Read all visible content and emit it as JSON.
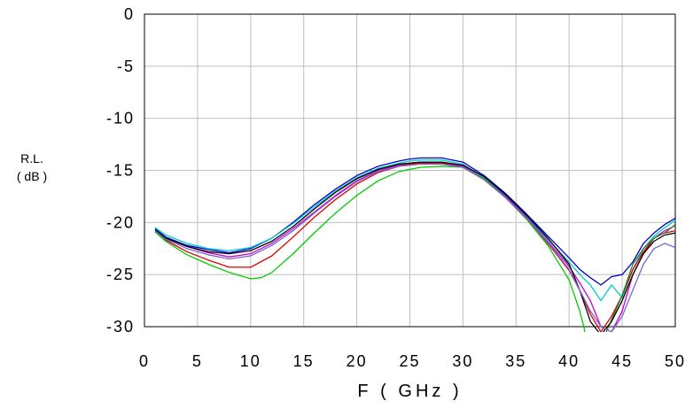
{
  "chart_data": {
    "type": "line",
    "title": "",
    "xlabel": "F ( GHz )",
    "ylabel_line1": "R.L.",
    "ylabel_line2": "( dB )",
    "xlim": [
      0,
      50
    ],
    "ylim": [
      -30,
      0
    ],
    "x_ticks": [
      0,
      5,
      10,
      15,
      20,
      25,
      30,
      35,
      40,
      45,
      50
    ],
    "y_ticks": [
      0,
      -5,
      -10,
      -15,
      -20,
      -25,
      -30
    ],
    "x_tick_labels": [
      "0",
      "5",
      "10",
      "15",
      "20",
      "25",
      "30",
      "35",
      "40",
      "45",
      "50"
    ],
    "y_tick_labels": [
      "0",
      "-5",
      "-10",
      "-15",
      "-20",
      "-25",
      "-30"
    ],
    "grid": true,
    "legend": "none",
    "series": [
      {
        "color": "#0000cc",
        "x": [
          1,
          2,
          4,
          6,
          8,
          10,
          12,
          14,
          16,
          18,
          20,
          22,
          24,
          25,
          26,
          28,
          30,
          32,
          34,
          36,
          38,
          40,
          41,
          42,
          43,
          44,
          45,
          46,
          47,
          48,
          49,
          50
        ],
        "y": [
          -20.6,
          -21.4,
          -22.2,
          -22.6,
          -22.9,
          -22.5,
          -21.5,
          -20.0,
          -18.3,
          -16.8,
          -15.5,
          -14.6,
          -14.1,
          -13.9,
          -13.8,
          -13.8,
          -14.2,
          -15.5,
          -17.2,
          -19.2,
          -21.3,
          -23.4,
          -24.5,
          -25.3,
          -26.0,
          -25.2,
          -25.0,
          -23.8,
          -22.0,
          -21.0,
          -20.2,
          -19.6
        ]
      },
      {
        "color": "#00cccc",
        "x": [
          1,
          2,
          4,
          6,
          8,
          10,
          12,
          14,
          16,
          18,
          20,
          22,
          24,
          25,
          26,
          28,
          30,
          32,
          34,
          36,
          38,
          40,
          41,
          42,
          43,
          44,
          45,
          46,
          47,
          48,
          49,
          50
        ],
        "y": [
          -20.5,
          -21.2,
          -22.0,
          -22.5,
          -22.7,
          -22.4,
          -21.5,
          -20.1,
          -18.5,
          -17.0,
          -15.7,
          -14.8,
          -14.3,
          -14.1,
          -14.0,
          -14.0,
          -14.4,
          -15.7,
          -17.4,
          -19.4,
          -21.6,
          -23.8,
          -25.0,
          -26.0,
          -27.5,
          -26.0,
          -27.2,
          -24.5,
          -22.5,
          -21.3,
          -20.5,
          -19.8
        ]
      },
      {
        "color": "#cc00cc",
        "x": [
          1,
          2,
          4,
          6,
          8,
          10,
          12,
          14,
          16,
          18,
          20,
          22,
          24,
          25,
          26,
          28,
          30,
          32,
          34,
          36,
          38,
          40,
          41,
          42,
          43,
          44,
          45,
          46,
          47,
          48,
          49,
          50
        ],
        "y": [
          -20.8,
          -21.5,
          -22.3,
          -22.9,
          -23.3,
          -23.0,
          -22.0,
          -20.6,
          -19.0,
          -17.4,
          -16.0,
          -15.0,
          -14.5,
          -14.3,
          -14.2,
          -14.2,
          -14.6,
          -15.8,
          -17.5,
          -19.5,
          -21.8,
          -24.2,
          -25.8,
          -27.5,
          -30.0,
          -30.5,
          -28.5,
          -25.0,
          -23.0,
          -21.5,
          -20.8,
          -20.3
        ]
      },
      {
        "color": "#dd0000",
        "x": [
          1,
          2,
          4,
          6,
          8,
          10,
          12,
          14,
          16,
          18,
          20,
          22,
          24,
          25,
          26,
          28,
          30,
          32,
          34,
          36,
          38,
          40,
          41,
          42,
          43,
          44,
          45,
          46,
          47,
          48,
          49,
          50
        ],
        "y": [
          -20.9,
          -21.7,
          -22.8,
          -23.6,
          -24.3,
          -24.3,
          -23.2,
          -21.4,
          -19.5,
          -17.8,
          -16.3,
          -15.2,
          -14.6,
          -14.4,
          -14.3,
          -14.3,
          -14.7,
          -15.9,
          -17.6,
          -19.6,
          -22.0,
          -24.6,
          -26.5,
          -28.8,
          -30.5,
          -29.0,
          -27.0,
          -24.5,
          -22.8,
          -21.5,
          -21.0,
          -20.8
        ]
      },
      {
        "color": "#00cc00",
        "x": [
          1,
          2,
          4,
          6,
          8,
          10,
          11,
          12,
          14,
          16,
          18,
          20,
          22,
          24,
          26,
          28,
          30,
          32,
          34,
          36,
          38,
          40,
          41,
          41.5
        ],
        "y": [
          -20.9,
          -21.8,
          -23.1,
          -24.0,
          -24.8,
          -25.4,
          -25.3,
          -24.8,
          -23.0,
          -21.0,
          -19.1,
          -17.4,
          -16.0,
          -15.1,
          -14.7,
          -14.6,
          -14.7,
          -15.8,
          -17.6,
          -19.7,
          -22.2,
          -25.5,
          -28.5,
          -30.5
        ]
      },
      {
        "color": "#228822",
        "x": [
          43.5,
          45,
          46,
          47,
          48,
          49,
          50
        ],
        "y": [
          -30.5,
          -27.0,
          -24.0,
          -22.5,
          -21.5,
          -21.0,
          -20.2
        ]
      },
      {
        "color": "#000000",
        "x": [
          1,
          2,
          4,
          6,
          8,
          10,
          12,
          14,
          16,
          18,
          20,
          22,
          24,
          26,
          28,
          30,
          32,
          34,
          36,
          38,
          40,
          41,
          42,
          43,
          44,
          45,
          46,
          47,
          48,
          49,
          50
        ],
        "y": [
          -20.7,
          -21.5,
          -22.3,
          -22.8,
          -23.0,
          -22.7,
          -21.8,
          -20.4,
          -18.7,
          -17.1,
          -15.8,
          -14.9,
          -14.4,
          -14.2,
          -14.2,
          -14.5,
          -15.6,
          -17.3,
          -19.3,
          -21.5,
          -24.0,
          -26.5,
          -29.5,
          -30.8,
          -29.5,
          -27.5,
          -25.0,
          -23.0,
          -21.8,
          -21.2,
          -21.0
        ]
      },
      {
        "color": "#7766cc",
        "x": [
          1,
          2,
          4,
          6,
          8,
          10,
          12,
          14,
          16,
          18,
          20,
          22,
          24,
          26,
          28,
          30,
          32,
          34,
          36,
          38,
          40,
          41,
          42,
          43,
          44,
          45,
          46,
          47,
          48,
          49,
          50
        ],
        "y": [
          -20.8,
          -21.6,
          -22.5,
          -23.1,
          -23.5,
          -23.2,
          -22.2,
          -20.8,
          -19.1,
          -17.5,
          -16.1,
          -15.1,
          -14.6,
          -14.4,
          -14.4,
          -14.7,
          -15.9,
          -17.6,
          -19.6,
          -21.9,
          -24.5,
          -26.5,
          -28.5,
          -30.0,
          -30.5,
          -29.0,
          -26.5,
          -24.0,
          -22.5,
          -22.0,
          -22.4
        ]
      }
    ]
  }
}
